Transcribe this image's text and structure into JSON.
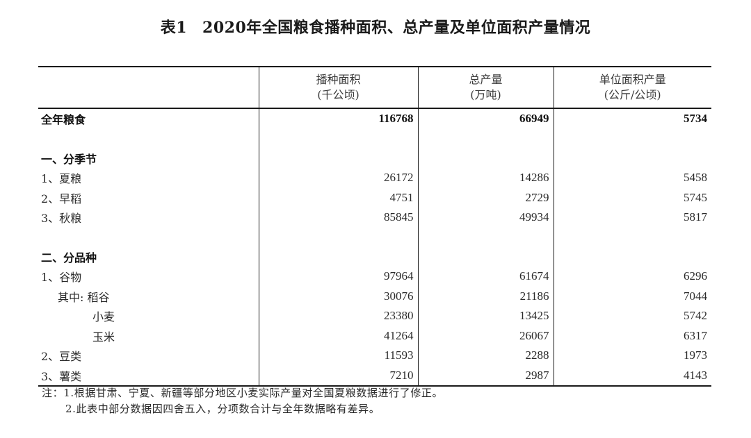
{
  "title": {
    "table_no": "表1",
    "text": "2020年全国粮食播种面积、总产量及单位面积产量情况"
  },
  "columns": [
    {
      "name": "播种面积",
      "unit": "(千公顷)"
    },
    {
      "name": "总产量",
      "unit": "(万吨)"
    },
    {
      "name": "单位面积产量",
      "unit": "(公斤/公顷)"
    }
  ],
  "rows": [
    {
      "label": "全年粮食",
      "area": "116768",
      "output": "66949",
      "yield": "5734"
    },
    {
      "label": "一、分季节"
    },
    {
      "label": "1、夏粮",
      "area": "26172",
      "output": "14286",
      "yield": "5458"
    },
    {
      "label": "2、早稻",
      "area": "4751",
      "output": "2729",
      "yield": "5745"
    },
    {
      "label": "3、秋粮",
      "area": "85845",
      "output": "49934",
      "yield": "5817"
    },
    {
      "label": "二、分品种"
    },
    {
      "label": "1、谷物",
      "area": "97964",
      "output": "61674",
      "yield": "6296"
    },
    {
      "label": "其中: 稻谷",
      "area": "30076",
      "output": "21186",
      "yield": "7044"
    },
    {
      "label": "小麦",
      "area": "23380",
      "output": "13425",
      "yield": "5742"
    },
    {
      "label": "玉米",
      "area": "41264",
      "output": "26067",
      "yield": "6317"
    },
    {
      "label": "2、豆类",
      "area": "11593",
      "output": "2288",
      "yield": "1973"
    },
    {
      "label": "3、薯类",
      "area": "7210",
      "output": "2987",
      "yield": "4143"
    }
  ],
  "notes": {
    "prefix": "注：",
    "items": [
      "1.根据甘肃、宁夏、新疆等部分地区小麦实际产量对全国夏粮数据进行了修正。",
      "2.此表中部分数据因四舍五入，分项数合计与全年数据略有差异。"
    ]
  }
}
